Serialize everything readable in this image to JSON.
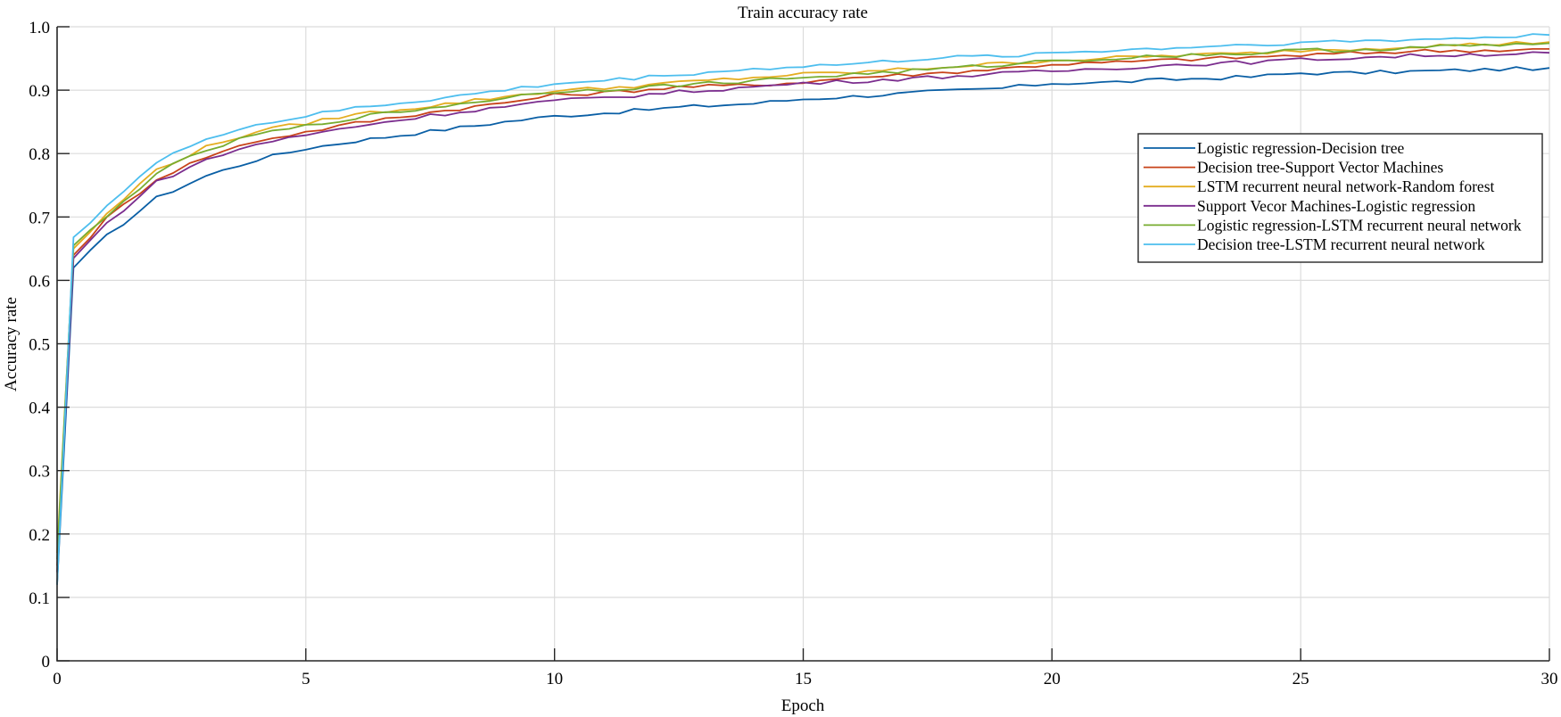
{
  "chart_data": {
    "type": "line",
    "title": "Train accuracy rate",
    "xlabel": "Epoch",
    "ylabel": "Accuracy rate",
    "xlim": [
      0,
      30
    ],
    "ylim": [
      0,
      1.0
    ],
    "xticks": [
      0,
      5,
      10,
      15,
      20,
      25,
      30
    ],
    "xtick_labels": [
      "0",
      "5",
      "10",
      "15",
      "20",
      "25",
      "30"
    ],
    "yticks": [
      0,
      0.1,
      0.2,
      0.3,
      0.4,
      0.5,
      0.6,
      0.7,
      0.8,
      0.9,
      1.0
    ],
    "ytick_labels": [
      "0",
      "0.1",
      "0.2",
      "0.3",
      "0.4",
      "0.5",
      "0.6",
      "0.7",
      "0.8",
      "0.9",
      "1.0"
    ],
    "grid": true,
    "legend_position": "upper right (inside, below top)",
    "x": [
      0,
      0.33,
      1,
      2,
      3,
      4,
      5,
      6,
      7.5,
      9,
      10,
      11,
      12.5,
      14,
      15,
      16,
      17.5,
      19,
      20,
      21,
      22.5,
      24,
      25,
      26,
      27.5,
      29,
      30
    ],
    "series": [
      {
        "name": "Logistic regression-Decision tree",
        "color": "#0a5fa5",
        "values": [
          0.12,
          0.62,
          0.67,
          0.73,
          0.765,
          0.79,
          0.808,
          0.82,
          0.835,
          0.85,
          0.859,
          0.864,
          0.873,
          0.879,
          0.886,
          0.89,
          0.897,
          0.903,
          0.911,
          0.912,
          0.917,
          0.921,
          0.927,
          0.927,
          0.93,
          0.933,
          0.935
        ]
      },
      {
        "name": "Decision tree-Support Vector Machines",
        "color": "#c8431a",
        "values": [
          0.15,
          0.64,
          0.698,
          0.76,
          0.795,
          0.82,
          0.834,
          0.848,
          0.865,
          0.88,
          0.892,
          0.896,
          0.905,
          0.908,
          0.913,
          0.92,
          0.926,
          0.934,
          0.941,
          0.943,
          0.948,
          0.952,
          0.955,
          0.958,
          0.962,
          0.963,
          0.965
        ]
      },
      {
        "name": "LSTM recurrent neural network-Random forest",
        "color": "#e4ad20",
        "values": [
          0.17,
          0.65,
          0.704,
          0.775,
          0.81,
          0.835,
          0.848,
          0.862,
          0.875,
          0.89,
          0.899,
          0.903,
          0.912,
          0.92,
          0.925,
          0.928,
          0.935,
          0.942,
          0.947,
          0.95,
          0.955,
          0.958,
          0.963,
          0.965,
          0.97,
          0.973,
          0.976
        ]
      },
      {
        "name": "Support Vecor Machines-Logistic regression",
        "color": "#7b2d8e",
        "values": [
          0.14,
          0.635,
          0.69,
          0.755,
          0.79,
          0.815,
          0.829,
          0.843,
          0.86,
          0.874,
          0.883,
          0.888,
          0.897,
          0.905,
          0.911,
          0.914,
          0.92,
          0.926,
          0.93,
          0.934,
          0.94,
          0.944,
          0.948,
          0.951,
          0.955,
          0.957,
          0.959
        ]
      },
      {
        "name": "Logistic regression-LSTM recurrent neural network",
        "color": "#77ac30",
        "values": [
          0.16,
          0.655,
          0.7,
          0.77,
          0.805,
          0.83,
          0.843,
          0.857,
          0.872,
          0.888,
          0.898,
          0.901,
          0.908,
          0.915,
          0.92,
          0.925,
          0.932,
          0.94,
          0.947,
          0.949,
          0.955,
          0.958,
          0.963,
          0.963,
          0.968,
          0.971,
          0.974
        ]
      },
      {
        "name": "Decision tree-LSTM recurrent neural network",
        "color": "#4dbeee",
        "values": [
          0.12,
          0.668,
          0.718,
          0.785,
          0.825,
          0.845,
          0.859,
          0.872,
          0.885,
          0.9,
          0.91,
          0.915,
          0.925,
          0.933,
          0.938,
          0.941,
          0.95,
          0.954,
          0.959,
          0.962,
          0.967,
          0.972,
          0.975,
          0.977,
          0.98,
          0.984,
          0.987
        ]
      }
    ]
  }
}
